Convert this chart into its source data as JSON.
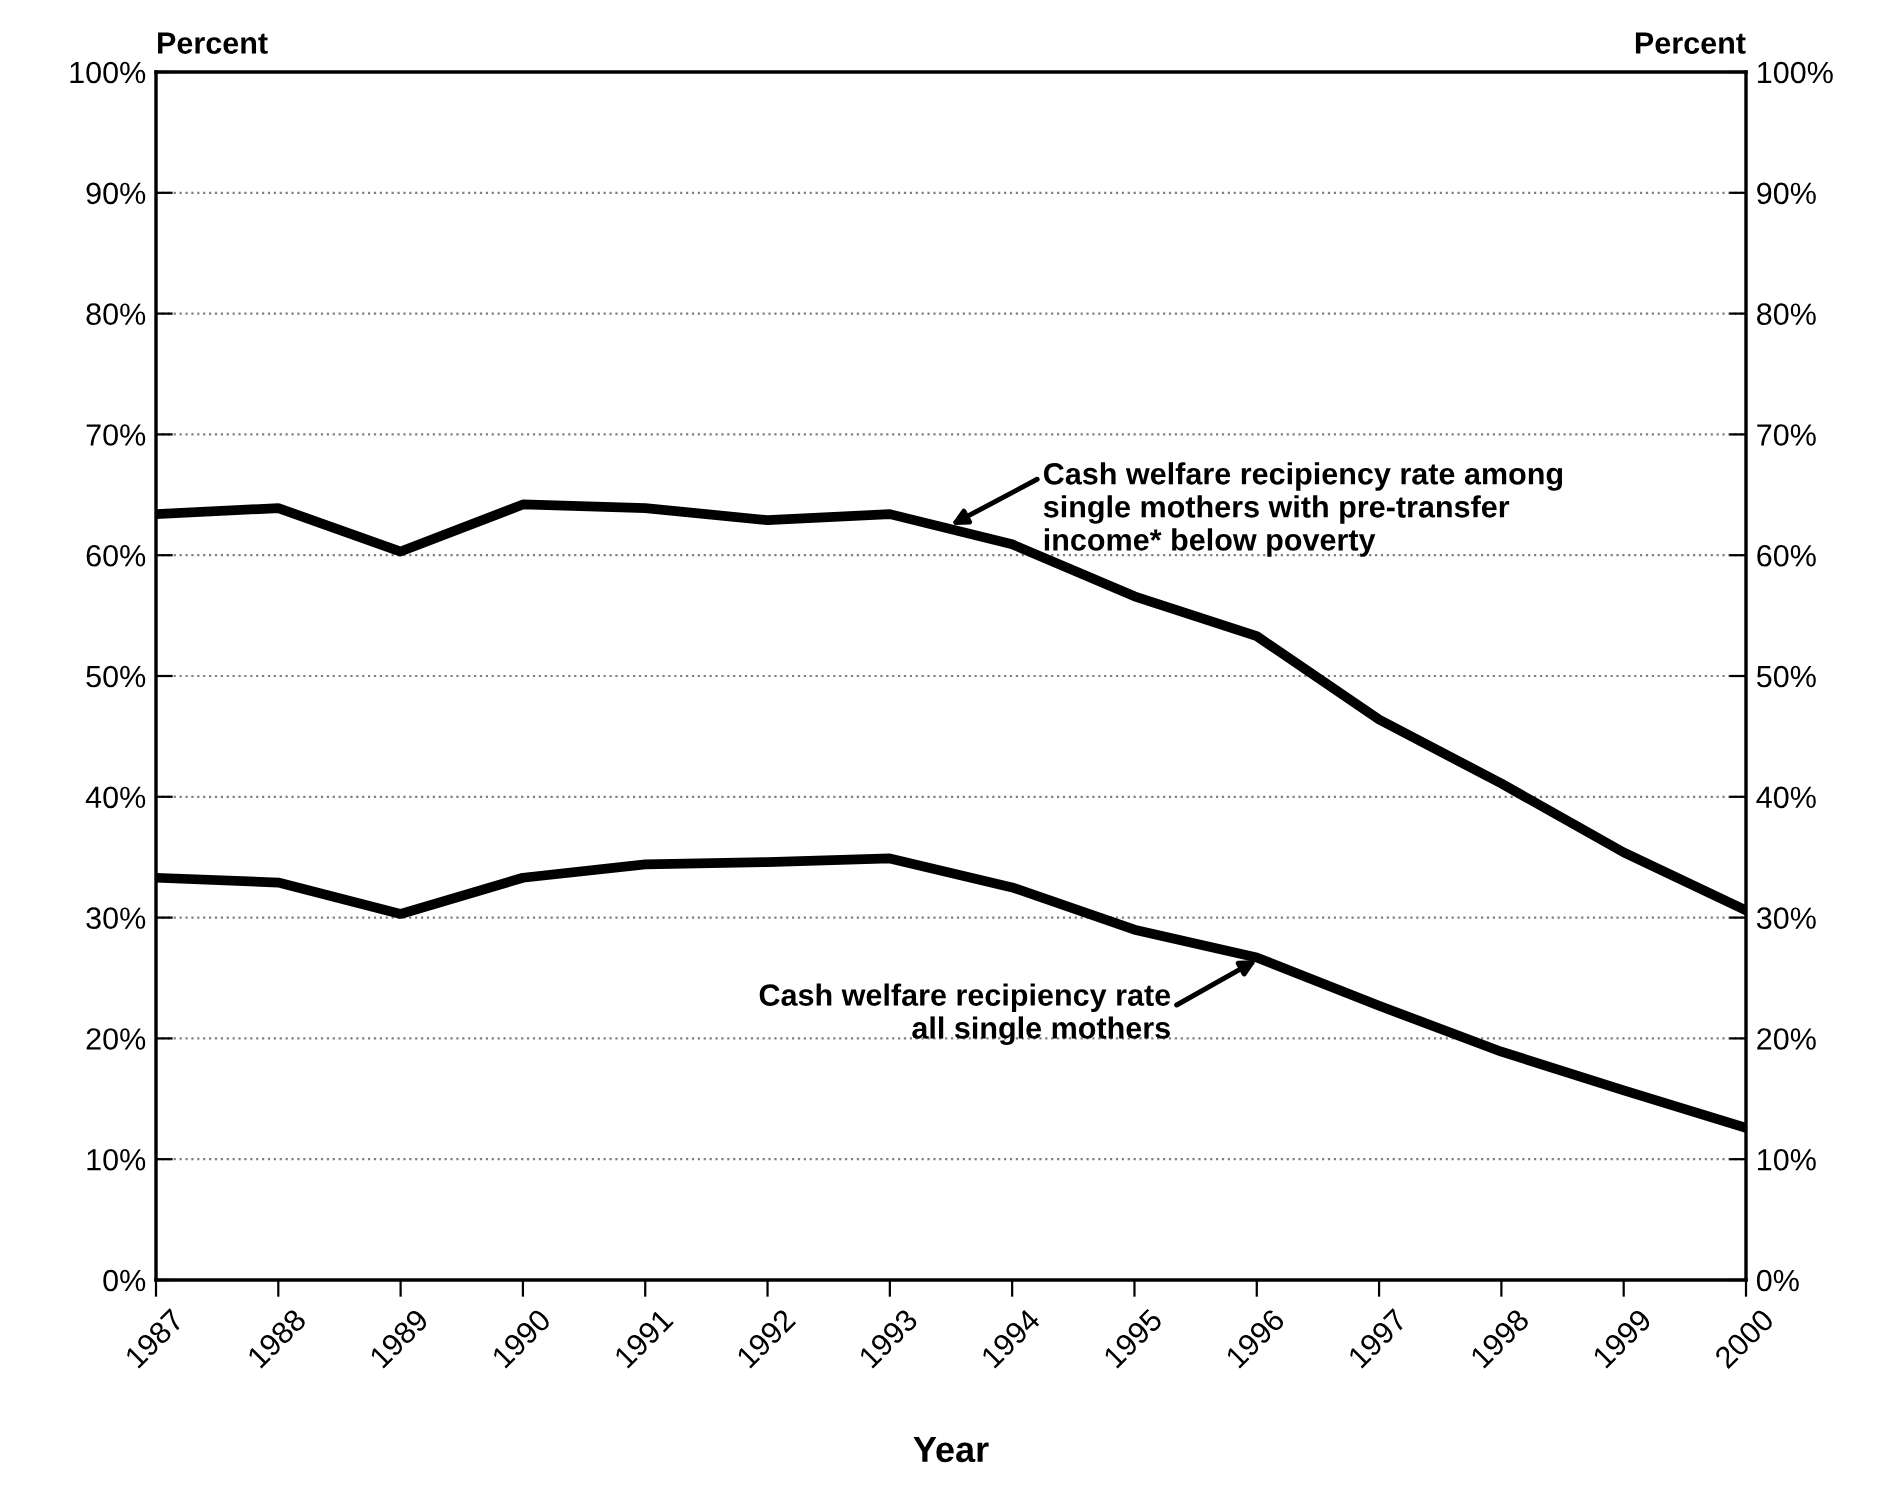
{
  "chart_data": {
    "type": "line",
    "xlabel": "Year",
    "ylabel": "Percent",
    "y2label": "Percent",
    "x": [
      1987,
      1988,
      1989,
      1990,
      1991,
      1992,
      1993,
      1994,
      1995,
      1996,
      1997,
      1998,
      1999,
      2000
    ],
    "series": [
      {
        "color": "#000000",
        "values": [
          63.4,
          63.9,
          60.3,
          64.2,
          63.9,
          62.9,
          63.4,
          60.9,
          56.6,
          53.3,
          46.4,
          41.1,
          35.4,
          30.6
        ]
      },
      {
        "color": "#000000",
        "values": [
          33.3,
          32.9,
          30.3,
          33.3,
          34.4,
          34.6,
          34.9,
          32.5,
          29.0,
          26.7,
          22.7,
          18.9,
          15.7,
          12.6
        ]
      }
    ],
    "annotations": [
      {
        "text": "Cash welfare recipiency rate among\nsingle mothers with pre-transfer\nincome* below poverty",
        "x": 1993.5,
        "y": 62.5
      },
      {
        "text": "Cash welfare recipiency rate\nall single mothers",
        "x": 1996,
        "y": 26.5
      }
    ],
    "xlim": [
      1987,
      2000
    ],
    "xticks": [
      1987,
      1988,
      1989,
      1990,
      1991,
      1992,
      1993,
      1994,
      1995,
      1996,
      1997,
      1998,
      1999,
      2000
    ],
    "ylim": [
      0,
      100
    ],
    "yticks": [
      {
        "value": 0,
        "label": "0%"
      },
      {
        "value": 10,
        "label": "10%"
      },
      {
        "value": 20,
        "label": "20%"
      },
      {
        "value": 30,
        "label": "30%"
      },
      {
        "value": 40,
        "label": "40%"
      },
      {
        "value": 50,
        "label": "50%"
      },
      {
        "value": 60,
        "label": "60%"
      },
      {
        "value": 70,
        "label": "70%"
      },
      {
        "value": 80,
        "label": "80%"
      },
      {
        "value": 90,
        "label": "90%"
      },
      {
        "value": 100,
        "label": "100%"
      }
    ],
    "y2lim": [
      0,
      100
    ],
    "y2ticks": [
      {
        "value": 0,
        "label": "0%"
      },
      {
        "value": 10,
        "label": "10%"
      },
      {
        "value": 20,
        "label": "20%"
      },
      {
        "value": 30,
        "label": "30%"
      },
      {
        "value": 40,
        "label": "40%"
      },
      {
        "value": 50,
        "label": "50%"
      },
      {
        "value": 60,
        "label": "60%"
      },
      {
        "value": 70,
        "label": "70%"
      },
      {
        "value": 80,
        "label": "80%"
      },
      {
        "value": 90,
        "label": "90%"
      },
      {
        "value": 100,
        "label": "100%"
      }
    ],
    "grid": "y",
    "marker": "none",
    "line_style": "solid",
    "legend": false
  }
}
